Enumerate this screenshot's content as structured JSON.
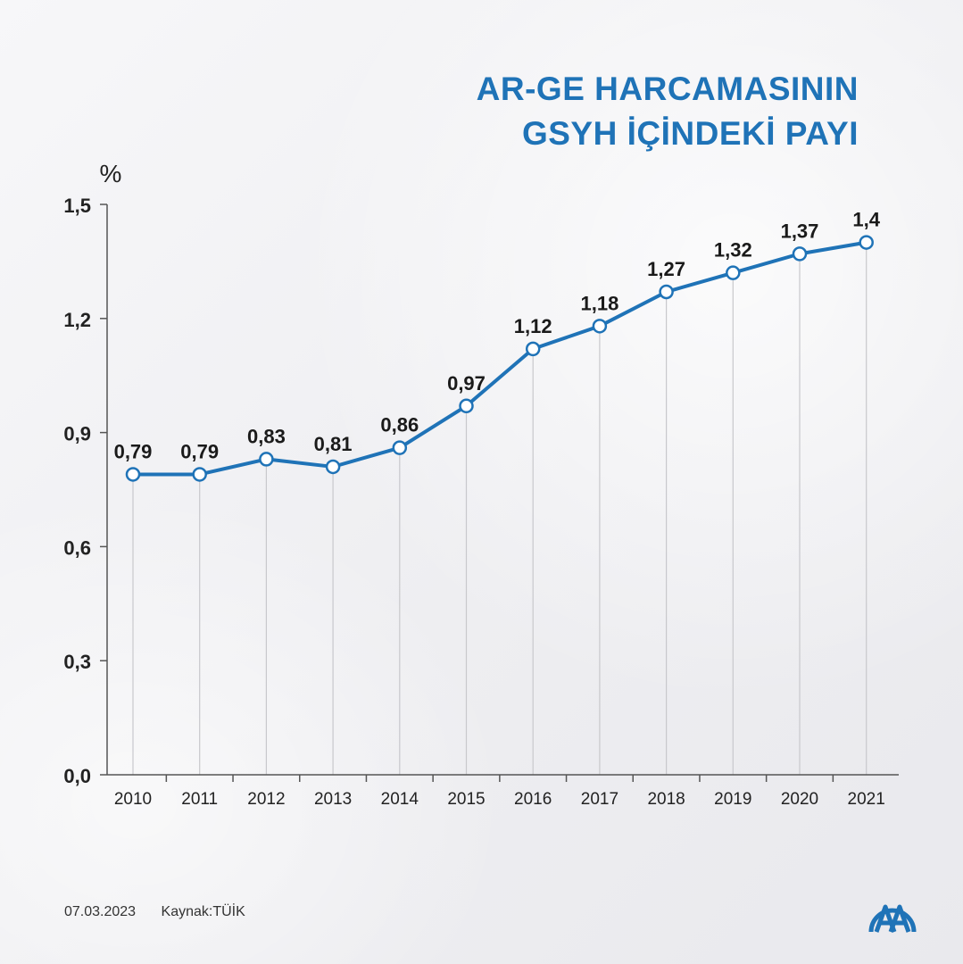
{
  "header": {
    "title_line1": "AR-GE HARCAMASININ",
    "title_line2": "GSYH İÇİNDEKİ PAYI"
  },
  "chart_data": {
    "type": "line",
    "title": "AR-GE HARCAMASININ GSYH İÇİNDEKİ PAYI",
    "ylabel": "%",
    "xlabel": "",
    "categories": [
      "2010",
      "2011",
      "2012",
      "2013",
      "2014",
      "2015",
      "2016",
      "2017",
      "2018",
      "2019",
      "2020",
      "2021"
    ],
    "values": [
      0.79,
      0.79,
      0.83,
      0.81,
      0.86,
      0.97,
      1.12,
      1.18,
      1.27,
      1.32,
      1.37,
      1.4
    ],
    "value_labels": [
      "0,79",
      "0,79",
      "0,83",
      "0,81",
      "0,86",
      "0,97",
      "1,12",
      "1,18",
      "1,27",
      "1,32",
      "1,37",
      "1,4"
    ],
    "ylim": [
      0,
      1.5
    ],
    "yticks": [
      0,
      0.3,
      0.6,
      0.9,
      1.2,
      1.5
    ],
    "ytick_labels": [
      "0,0",
      "0,3",
      "0,6",
      "0,9",
      "1,2",
      "1,5"
    ],
    "grid": false,
    "colors": {
      "line": "#1f73b7",
      "marker_fill": "#ffffff",
      "drop_line": "#c8c8cc",
      "axis": "#555555"
    }
  },
  "footer": {
    "date": "07.03.2023",
    "source": "Kaynak:TÜİK"
  },
  "logo": {
    "icon": "aa-logo-icon",
    "color": "#1f73b7"
  }
}
